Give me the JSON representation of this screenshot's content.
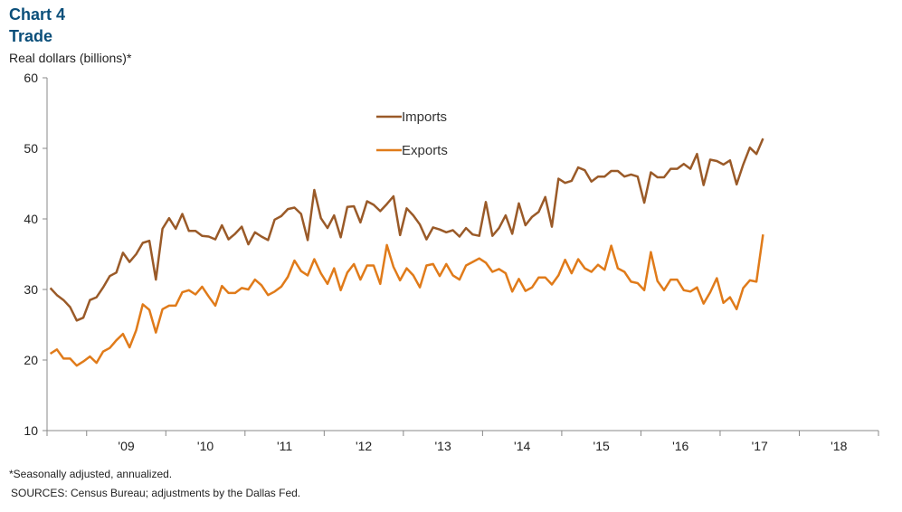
{
  "header": {
    "chart_number": "Chart 4",
    "title": "Trade",
    "units": "Real dollars (billions)*"
  },
  "footer": {
    "note": "*Seasonally adjusted, annualized.",
    "sources": "SOURCES: Census Bureau; adjustments by the Dallas Fed."
  },
  "chart_data": {
    "type": "line",
    "title": "Trade",
    "ylabel": "Real dollars (billions)*",
    "xlabel": "",
    "ylim": [
      10,
      60
    ],
    "yticks": [
      10,
      20,
      30,
      40,
      50,
      60
    ],
    "x_start": "2008-07",
    "x_labels": [
      "'09",
      "'10",
      "'11",
      "'12",
      "'13",
      "'14",
      "'15",
      "'16",
      "'17",
      "'18"
    ],
    "grid": false,
    "legend_position": "top-center",
    "series": [
      {
        "name": "Imports",
        "color": "#9a5a28",
        "values": [
          30.2,
          29.2,
          28.5,
          27.5,
          25.6,
          26.0,
          28.5,
          28.9,
          30.3,
          31.9,
          32.4,
          35.2,
          33.9,
          35.0,
          36.6,
          36.9,
          31.4,
          38.6,
          40.1,
          38.6,
          40.7,
          38.3,
          38.3,
          37.6,
          37.5,
          37.1,
          39.1,
          37.1,
          37.9,
          38.9,
          36.4,
          38.1,
          37.5,
          37.0,
          39.9,
          40.4,
          41.4,
          41.6,
          40.7,
          37.0,
          44.1,
          40.1,
          38.7,
          40.5,
          37.4,
          41.7,
          41.8,
          39.5,
          42.5,
          42.0,
          41.1,
          42.1,
          43.2,
          37.7,
          41.5,
          40.5,
          39.2,
          37.1,
          38.8,
          38.5,
          38.1,
          38.4,
          37.5,
          38.7,
          37.8,
          37.6,
          42.4,
          37.6,
          38.7,
          40.5,
          37.9,
          42.2,
          39.1,
          40.3,
          41.0,
          43.1,
          38.9,
          45.7,
          45.1,
          45.4,
          47.3,
          46.9,
          45.3,
          46.0,
          46.0,
          46.8,
          46.8,
          46.0,
          46.3,
          46.0,
          42.3,
          46.6,
          45.9,
          45.9,
          47.1,
          47.1,
          47.8,
          47.1,
          49.2,
          44.8,
          48.4,
          48.2,
          47.7,
          48.3,
          44.9,
          47.7,
          50.1,
          49.2,
          51.4
        ]
      },
      {
        "name": "Exports",
        "color": "#e07b1a",
        "values": [
          20.9,
          21.5,
          20.2,
          20.2,
          19.2,
          19.8,
          20.5,
          19.6,
          21.2,
          21.7,
          22.8,
          23.7,
          21.8,
          24.2,
          27.9,
          27.1,
          23.9,
          27.2,
          27.7,
          27.7,
          29.6,
          29.9,
          29.3,
          30.4,
          29.0,
          27.7,
          30.5,
          29.5,
          29.5,
          30.2,
          30.0,
          31.4,
          30.6,
          29.2,
          29.7,
          30.4,
          31.8,
          34.1,
          32.6,
          32.0,
          34.3,
          32.3,
          30.8,
          33.0,
          29.9,
          32.4,
          33.6,
          31.4,
          33.4,
          33.4,
          30.8,
          36.3,
          33.2,
          31.3,
          33.0,
          32.0,
          30.3,
          33.4,
          33.6,
          31.9,
          33.6,
          32.0,
          31.4,
          33.4,
          33.9,
          34.4,
          33.8,
          32.5,
          32.9,
          32.3,
          29.7,
          31.5,
          29.8,
          30.3,
          31.7,
          31.7,
          30.7,
          32.0,
          34.2,
          32.3,
          34.3,
          33.0,
          32.5,
          33.5,
          32.8,
          36.2,
          33.0,
          32.5,
          31.1,
          30.9,
          29.9,
          35.3,
          31.2,
          29.9,
          31.4,
          31.4,
          29.9,
          29.7,
          30.3,
          28.0,
          29.6,
          31.6,
          28.1,
          28.9,
          27.2,
          30.2,
          31.3,
          31.1,
          37.8
        ]
      }
    ]
  }
}
